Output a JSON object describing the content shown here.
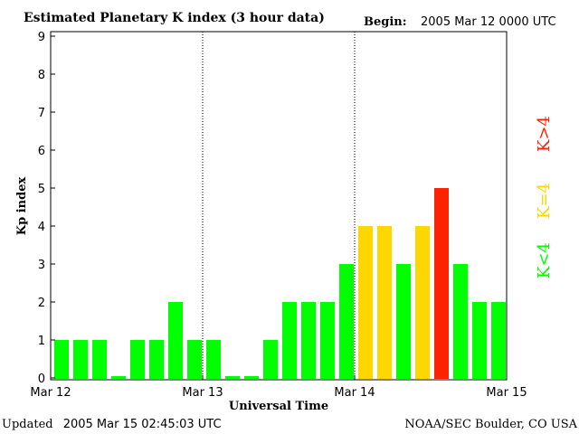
{
  "header": {
    "title": "Estimated Planetary K index (3 hour data)",
    "begin_label": "Begin:",
    "begin_value": "2005 Mar 12 0000 UTC"
  },
  "footer": {
    "updated_label": "Updated",
    "updated_value": "2005 Mar 15 02:45:03 UTC",
    "credit": "NOAA/SEC Boulder, CO USA"
  },
  "colors": {
    "low": "#00ff00",
    "equal": "#ffd700",
    "high": "#ff2200"
  },
  "legend": [
    {
      "label": "K<4",
      "color": "#00ff00"
    },
    {
      "label": "K=4",
      "color": "#ffd700"
    },
    {
      "label": "K>4",
      "color": "#ff2200"
    }
  ],
  "chart_data": {
    "type": "bar",
    "xlabel": "Universal Time",
    "ylabel": "Kp index",
    "ylim": [
      0,
      9
    ],
    "yticks": [
      0,
      1,
      2,
      3,
      4,
      5,
      6,
      7,
      8,
      9
    ],
    "day_labels": [
      "Mar 12",
      "Mar 13",
      "Mar 14",
      "Mar 15"
    ],
    "grid": "dotted vertical lines at day boundaries",
    "values": [
      1,
      1,
      1,
      0,
      1,
      1,
      2,
      1,
      1,
      0,
      0,
      1,
      2,
      2,
      2,
      3,
      4,
      4,
      3,
      4,
      5,
      3,
      2,
      2
    ]
  }
}
